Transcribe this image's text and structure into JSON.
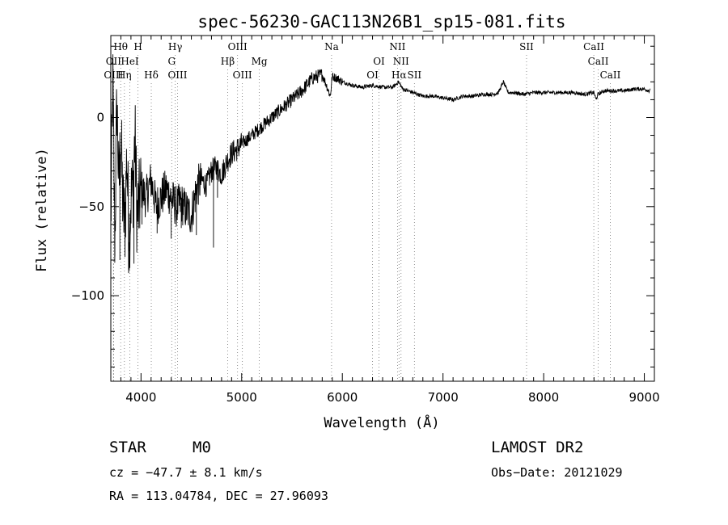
{
  "chart_data": {
    "type": "line",
    "title": "spec-56230-GAC113N26B1_sp15-081.fits",
    "xlabel": "Wavelength (Å)",
    "ylabel": "Flux (relative)",
    "xlim": [
      3700,
      9100
    ],
    "ylim": [
      -148,
      46
    ],
    "xticks": [
      4000,
      5000,
      6000,
      7000,
      8000,
      9000
    ],
    "yticks": [
      0,
      -50,
      -100
    ],
    "grid": false,
    "spectrum": {
      "x": [
        3700,
        3720,
        3740,
        3760,
        3780,
        3800,
        3820,
        3840,
        3860,
        3880,
        3900,
        3920,
        3940,
        3960,
        3980,
        4000,
        4050,
        4100,
        4150,
        4200,
        4250,
        4300,
        4350,
        4400,
        4450,
        4500,
        4550,
        4600,
        4650,
        4700,
        4750,
        4800,
        4850,
        4900,
        4950,
        5000,
        5100,
        5200,
        5300,
        5400,
        5500,
        5600,
        5700,
        5800,
        5850,
        5880,
        5900,
        5950,
        6000,
        6100,
        6200,
        6300,
        6400,
        6500,
        6560,
        6600,
        6700,
        6800,
        6900,
        7000,
        7100,
        7200,
        7300,
        7400,
        7500,
        7550,
        7600,
        7630,
        7650,
        7700,
        7800,
        7900,
        8000,
        8100,
        8200,
        8300,
        8400,
        8500,
        8520,
        8540,
        8600,
        8700,
        8800,
        8900,
        9000,
        9050,
        9060
      ],
      "y": [
        -60,
        20,
        -70,
        10,
        -40,
        -10,
        -50,
        -60,
        -20,
        -70,
        -45,
        -40,
        -10,
        -55,
        -50,
        -40,
        -45,
        -35,
        -50,
        -45,
        -40,
        -45,
        -50,
        -48,
        -52,
        -55,
        -40,
        -35,
        -38,
        -30,
        -28,
        -32,
        -25,
        -20,
        -18,
        -15,
        -10,
        -5,
        0,
        5,
        10,
        15,
        22,
        24,
        17,
        12,
        23,
        22,
        20,
        18,
        17,
        18,
        17,
        17,
        20,
        16,
        14,
        12,
        12,
        11,
        10,
        12,
        12,
        13,
        13,
        14,
        20,
        16,
        14,
        14,
        13,
        14,
        14,
        14,
        14,
        14,
        13,
        14,
        10,
        13,
        15,
        15,
        15,
        16,
        16,
        15,
        17
      ]
    },
    "spikes": [
      {
        "x": 3740,
        "y": -78
      },
      {
        "x": 3790,
        "y": -80
      },
      {
        "x": 3830,
        "y": -45
      },
      {
        "x": 3880,
        "y": -75
      },
      {
        "x": 3930,
        "y": -82
      },
      {
        "x": 4010,
        "y": -60
      },
      {
        "x": 4160,
        "y": -65
      },
      {
        "x": 4300,
        "y": -68
      },
      {
        "x": 4400,
        "y": -62
      },
      {
        "x": 4500,
        "y": -60
      },
      {
        "x": 4550,
        "y": -66
      },
      {
        "x": 4720,
        "y": -73
      },
      {
        "x": 4760,
        "y": -45
      }
    ],
    "lines": [
      {
        "label": "Hθ",
        "x": 3798,
        "row": 0
      },
      {
        "label": "H",
        "x": 3970,
        "row": 0
      },
      {
        "label": "Hγ",
        "x": 4340,
        "row": 0
      },
      {
        "label": "OIII",
        "x": 4959,
        "row": 0
      },
      {
        "label": "Na",
        "x": 5893,
        "row": 0
      },
      {
        "label": "NII",
        "x": 6548,
        "row": 0
      },
      {
        "label": "SII",
        "x": 7830,
        "row": 0
      },
      {
        "label": "CaII",
        "x": 8498,
        "row": 0
      },
      {
        "label": "OII",
        "x": 3727,
        "row": 1
      },
      {
        "label": "HeI",
        "x": 3889,
        "row": 1
      },
      {
        "label": "G",
        "x": 4305,
        "row": 1
      },
      {
        "label": "Hβ",
        "x": 4861,
        "row": 1
      },
      {
        "label": "Mg",
        "x": 5175,
        "row": 1
      },
      {
        "label": "OI",
        "x": 6364,
        "row": 1
      },
      {
        "label": "NII",
        "x": 6583,
        "row": 1
      },
      {
        "label": "CaII",
        "x": 8542,
        "row": 1
      },
      {
        "label": "OIII",
        "x": 3727,
        "row": 2
      },
      {
        "label": "Hη",
        "x": 3835,
        "row": 2
      },
      {
        "label": "Hδ",
        "x": 4102,
        "row": 2
      },
      {
        "label": "OIII",
        "x": 4363,
        "row": 2
      },
      {
        "label": "OIII",
        "x": 5007,
        "row": 2
      },
      {
        "label": "OI",
        "x": 6300,
        "row": 2
      },
      {
        "label": "Hα",
        "x": 6563,
        "row": 2
      },
      {
        "label": "SII",
        "x": 6716,
        "row": 2
      },
      {
        "label": "CaII",
        "x": 8662,
        "row": 2
      }
    ]
  },
  "info": {
    "class": "STAR",
    "subclass": "M0",
    "survey": "LAMOST DR2",
    "cz": "cz = −47.7 ± 8.1 km/s",
    "obs_date": "Obs−Date: 20121029",
    "radec": "RA = 113.04784, DEC =  27.96093"
  }
}
